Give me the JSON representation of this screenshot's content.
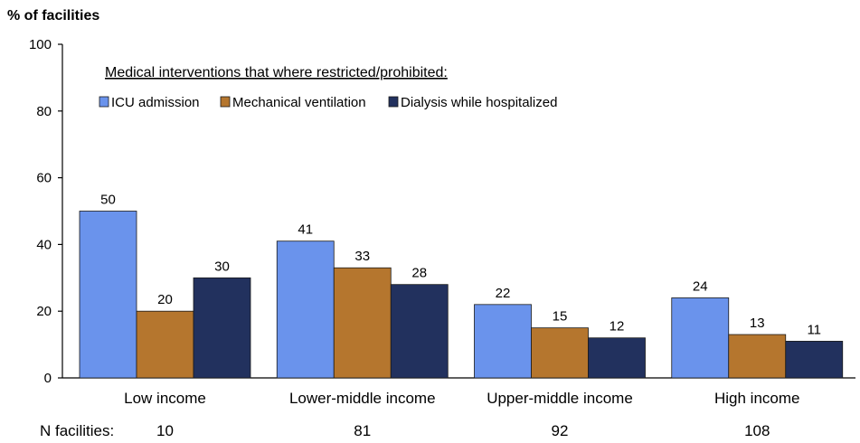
{
  "chart_data": {
    "type": "bar",
    "ylabel": "% of facilities",
    "ylim": [
      0,
      100
    ],
    "yticks": [
      0,
      20,
      40,
      60,
      80,
      100
    ],
    "grid": false,
    "legend_title": "Medical interventions that where restricted/prohibited:",
    "legend_position": "top-left",
    "categories": [
      "Low income",
      "Lower-middle income",
      "Upper-middle income",
      "High income"
    ],
    "series": [
      {
        "name": "ICU admission",
        "color": "#6a93ec",
        "values": [
          50,
          41,
          22,
          24
        ],
        "labels": [
          "50",
          "41",
          "22",
          "24"
        ]
      },
      {
        "name": "Mechanical ventilation",
        "color": "#b5762e",
        "values": [
          20,
          33,
          15,
          13
        ],
        "labels": [
          "20",
          "33",
          "15",
          "13"
        ]
      },
      {
        "name": "Dialysis while hospitalized",
        "color": "#22315e",
        "values": [
          30,
          28,
          12,
          11
        ],
        "labels": [
          "30",
          "28",
          "12",
          "11"
        ]
      }
    ],
    "n_facilities_label": "N facilities:",
    "n_facilities": [
      "10",
      "81",
      "92",
      "108"
    ]
  }
}
